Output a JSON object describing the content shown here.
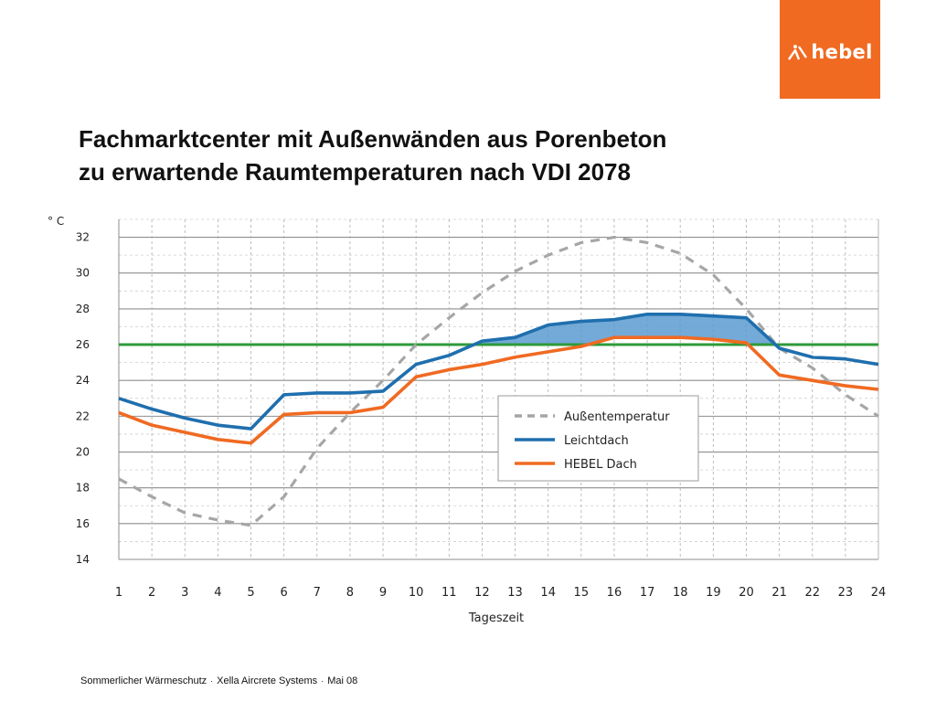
{
  "header": {
    "logo_text": "hebel",
    "logo_icon": "hebel-logo-icon",
    "brand_color": "#f06a22",
    "title_line1": "Fachmarktcenter mit Außenwänden aus Porenbeton",
    "title_line2": "zu erwartende Raumtemperaturen nach VDI 2078"
  },
  "chart_data": {
    "type": "line",
    "ylabel": "° C",
    "xlabel": "Tageszeit",
    "ylim": [
      14,
      33
    ],
    "xlim": [
      1,
      24
    ],
    "yticks": [
      14,
      16,
      18,
      20,
      22,
      24,
      26,
      28,
      30,
      32
    ],
    "x": [
      1,
      2,
      3,
      4,
      5,
      6,
      7,
      8,
      9,
      10,
      11,
      12,
      13,
      14,
      15,
      16,
      17,
      18,
      19,
      20,
      21,
      22,
      23,
      24
    ],
    "grid": true,
    "threshold": {
      "value": 26,
      "color": "#2e9a3a"
    },
    "series": [
      {
        "name": "Außentemperatur",
        "color": "#a6a6a6",
        "style": "dashed",
        "values": [
          18.5,
          17.5,
          16.6,
          16.2,
          15.9,
          17.5,
          20.2,
          22.2,
          24.0,
          26.0,
          27.5,
          28.9,
          30.1,
          31.0,
          31.7,
          32.0,
          31.7,
          31.1,
          29.9,
          28.0,
          25.8,
          24.7,
          23.2,
          22.0
        ]
      },
      {
        "name": "Leichtdach",
        "color": "#1f6fae",
        "style": "solid",
        "values": [
          23.0,
          22.4,
          21.9,
          21.5,
          21.3,
          23.2,
          23.3,
          23.3,
          23.4,
          24.9,
          25.4,
          26.2,
          26.4,
          27.1,
          27.3,
          27.4,
          27.7,
          27.7,
          27.6,
          27.5,
          25.8,
          25.3,
          25.2,
          24.9
        ]
      },
      {
        "name": "HEBEL Dach",
        "color": "#f06a22",
        "style": "solid",
        "values": [
          22.2,
          21.5,
          21.1,
          20.7,
          20.5,
          22.1,
          22.2,
          22.2,
          22.5,
          24.2,
          24.6,
          24.9,
          25.3,
          25.6,
          25.9,
          26.4,
          26.4,
          26.4,
          26.3,
          26.1,
          24.3,
          24.0,
          23.7,
          23.5
        ]
      }
    ],
    "legend": {
      "placement": "lower-right",
      "entries": [
        "Außentemperatur",
        "Leichtdach",
        "HEBEL Dach"
      ]
    },
    "fill_between": {
      "upper": "Leichtdach",
      "lower": "HEBEL Dach",
      "floor": 26,
      "color": "#5b9bd0"
    }
  },
  "footer": {
    "part1": "Sommerlicher Wärmeschutz",
    "part2": "Xella Aircrete Systems",
    "part3": "Mai 08",
    "separator": "·"
  }
}
